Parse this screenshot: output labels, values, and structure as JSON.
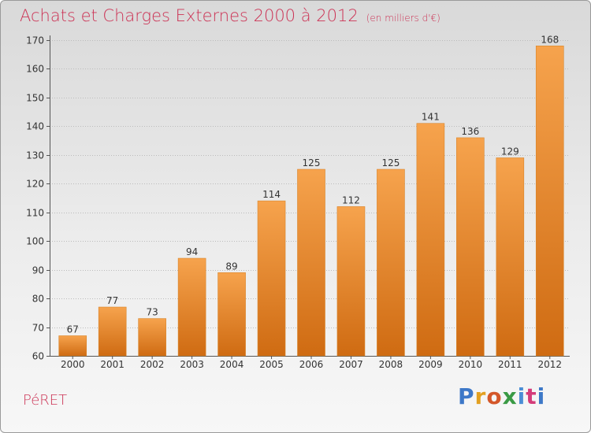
{
  "header": {
    "title": "Achats et Charges Externes 2000 à 2012",
    "unit": "(en milliers d'€)"
  },
  "footer": {
    "commune": "PéRET",
    "logo_text": "Proxiti"
  },
  "colors": {
    "title": "#cc3355",
    "bar_top": "#f6a34d",
    "bar_bottom": "#cf6b12",
    "grid": "#bbbbbb"
  },
  "chart_data": {
    "type": "bar",
    "title": "Achats et Charges Externes 2000 à 2012",
    "subtitle": "(en milliers d'€)",
    "xlabel": "",
    "ylabel": "",
    "categories": [
      "2000",
      "2001",
      "2002",
      "2003",
      "2004",
      "2005",
      "2006",
      "2007",
      "2008",
      "2009",
      "2010",
      "2011",
      "2012"
    ],
    "values": [
      67,
      77,
      73,
      94,
      89,
      114,
      125,
      112,
      125,
      141,
      136,
      129,
      168
    ],
    "ylim": [
      60,
      170
    ],
    "yticks": [
      60,
      70,
      80,
      90,
      100,
      110,
      120,
      130,
      140,
      150,
      160,
      170
    ],
    "grid": true,
    "data_labels": true
  }
}
